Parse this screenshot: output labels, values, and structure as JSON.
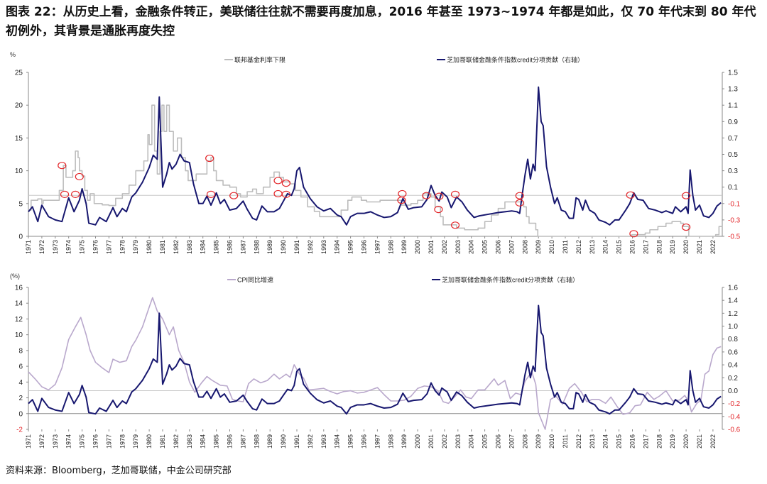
{
  "title": "图表 22：从历史上看，金融条件转正，美联储往往就不需要再度加息，2016 年甚至 1973~1974 年都是如此，仅 70 年代末到 80 年代初例外，其背景是通胀再度失控",
  "source": "资料来源：Bloomberg，芝加哥联储，中金公司研究部",
  "colors": {
    "fed": "#bdbdbd",
    "credit": "#17176f",
    "cpi": "#b9a8cc",
    "circle": "#e3262a",
    "neg_tick": "#e3262a",
    "refline": "#c8c8c8"
  },
  "chart_data": [
    {
      "type": "line",
      "unit_label": "%",
      "ylim_left": [
        0,
        25
      ],
      "yticks_left": [
        0,
        5,
        10,
        15,
        20,
        25
      ],
      "ylim_right": [
        -0.5,
        1.5
      ],
      "yticks_right": [
        "1.5",
        "1.3",
        "1.1",
        "0.9",
        "0.7",
        "0.5",
        "0.3",
        "0.1",
        "-0.1",
        "-0.3",
        "-0.5"
      ],
      "xlim": [
        1971,
        2022.7
      ],
      "xticks": [
        "1971",
        "1972",
        "1973",
        "1974",
        "1975",
        "1976",
        "1977",
        "1978",
        "1979",
        "1980",
        "1981",
        "1982",
        "1983",
        "1984",
        "1985",
        "1986",
        "1987",
        "1988",
        "1989",
        "1990",
        "1991",
        "1992",
        "1993",
        "1994",
        "1995",
        "1996",
        "1997",
        "1998",
        "1999",
        "2000",
        "2001",
        "2002",
        "2003",
        "2004",
        "2005",
        "2006",
        "2007",
        "2008",
        "2009",
        "2010",
        "2011",
        "2012",
        "2013",
        "2014",
        "2015",
        "2016",
        "2017",
        "2018",
        "2019",
        "2020",
        "2021",
        "2022"
      ],
      "reference_line_right": 0.0,
      "legend": [
        {
          "name": "联邦基金利率下限"
        },
        {
          "name": "芝加哥联储金融条件指数credit分项贡献（右轴）"
        }
      ],
      "series": [
        {
          "name": "联邦基金利率下限",
          "axis": "left",
          "step": true,
          "x": [
            1971.0,
            1971.2,
            1971.7,
            1972.0,
            1972.1,
            1973.0,
            1973.3,
            1973.6,
            1973.8,
            1974.3,
            1974.5,
            1974.7,
            1974.8,
            1975.0,
            1975.2,
            1975.4,
            1975.6,
            1975.9,
            1976.5,
            1977.0,
            1977.5,
            1978.0,
            1978.5,
            1979.0,
            1979.6,
            1979.9,
            1980.0,
            1980.2,
            1980.4,
            1980.6,
            1980.8,
            1980.95,
            1981.1,
            1981.3,
            1981.5,
            1981.8,
            1982.1,
            1982.4,
            1982.7,
            1982.9,
            1983.5,
            1984.3,
            1984.6,
            1984.8,
            1985.0,
            1985.5,
            1986.0,
            1986.5,
            1986.8,
            1987.3,
            1987.7,
            1988.0,
            1988.5,
            1989.0,
            1989.3,
            1989.7,
            1990.0,
            1990.5,
            1990.9,
            1991.3,
            1991.8,
            1992.3,
            1992.7,
            1994.1,
            1994.3,
            1994.8,
            1995.1,
            1995.8,
            1996.2,
            1997.2,
            1998.8,
            1999.5,
            2000.0,
            2000.4,
            2001.0,
            2001.3,
            2001.7,
            2001.9,
            2002.9,
            2003.5,
            2004.5,
            2005.0,
            2005.5,
            2006.0,
            2006.5,
            2007.6,
            2007.9,
            2008.1,
            2008.3,
            2008.8,
            2008.95,
            2015.95,
            2016.95,
            2017.3,
            2017.9,
            2018.5,
            2018.95,
            2019.6,
            2019.8,
            2020.2,
            2022.2,
            2022.45,
            2022.7
          ],
          "values": [
            4.0,
            5.5,
            5.7,
            5.0,
            5.5,
            5.5,
            7.0,
            10.8,
            9.0,
            10.0,
            13.0,
            12.0,
            10.0,
            9.2,
            7.0,
            5.5,
            6.5,
            5.0,
            4.8,
            4.7,
            5.8,
            6.5,
            7.8,
            10.0,
            11.5,
            15.5,
            14.0,
            20.0,
            13.0,
            9.5,
            16.0,
            20.0,
            16.0,
            20.0,
            16.0,
            13.0,
            15.0,
            12.0,
            10.0,
            8.5,
            9.5,
            11.5,
            12.0,
            10.0,
            8.5,
            7.8,
            7.5,
            6.5,
            6.0,
            6.8,
            7.2,
            6.5,
            7.5,
            9.0,
            9.8,
            9.0,
            8.3,
            8.0,
            7.0,
            6.0,
            4.5,
            3.8,
            3.0,
            3.0,
            4.0,
            5.5,
            6.0,
            5.5,
            5.25,
            5.5,
            4.75,
            5.0,
            5.5,
            6.5,
            6.0,
            4.5,
            3.0,
            1.75,
            1.25,
            1.0,
            1.25,
            2.25,
            3.25,
            4.25,
            5.25,
            5.25,
            4.5,
            3.0,
            2.0,
            1.0,
            0.0,
            0.25,
            0.5,
            1.0,
            1.5,
            2.0,
            2.25,
            2.0,
            1.5,
            0.0,
            0.25,
            1.5,
            1.5
          ]
        },
        {
          "name": "芝加哥联储金融条件指数credit分项贡献（右轴）",
          "axis": "right",
          "ref": "credit"
        }
      ],
      "annotations_circles": [
        [
          1973.5,
          10.8
        ],
        [
          1973.7,
          6.4
        ],
        [
          1974.5,
          6.4
        ],
        [
          1974.8,
          9.1
        ],
        [
          1984.5,
          11.9
        ],
        [
          1984.6,
          6.4
        ],
        [
          1986.3,
          6.2
        ],
        [
          1989.6,
          8.5
        ],
        [
          1989.6,
          6.5
        ],
        [
          1990.2,
          8.1
        ],
        [
          1990.2,
          6.4
        ],
        [
          1998.85,
          6.5
        ],
        [
          1998.8,
          5.5
        ],
        [
          2000.65,
          6.2
        ],
        [
          2001.55,
          4.1
        ],
        [
          2001.6,
          6.1
        ],
        [
          2002.8,
          6.4
        ],
        [
          2002.8,
          1.7
        ],
        [
          2007.6,
          6.2
        ],
        [
          2007.6,
          5.1
        ],
        [
          2015.85,
          6.3
        ],
        [
          2016.1,
          0.4
        ],
        [
          2020.0,
          6.2
        ],
        [
          2020.0,
          1.4
        ]
      ]
    },
    {
      "type": "line",
      "unit_label": "(%)",
      "ylim_left": [
        -2,
        16
      ],
      "yticks_left": [
        "16",
        "14",
        "12",
        "10",
        "8",
        "6",
        "4",
        "2",
        "0",
        "-2"
      ],
      "ylim_right": [
        -0.6,
        1.6
      ],
      "yticks_right": [
        "1.6",
        "1.4",
        "1.2",
        "1.0",
        "0.8",
        "0.6",
        "0.4",
        "0.2",
        "0.0",
        "-0.2",
        "-0.4",
        "-0.6"
      ],
      "xlim": [
        1971,
        2022.7
      ],
      "reference_line_right": 0.0,
      "legend": [
        {
          "name": "CPI同比增速"
        },
        {
          "name": "芝加哥联储金融条件指数credit分项贡献（右轴）"
        }
      ],
      "series": [
        {
          "name": "CPI同比增速",
          "axis": "left",
          "x": [
            1971.0,
            1971.5,
            1972.0,
            1972.5,
            1973.0,
            1973.5,
            1974.0,
            1974.5,
            1974.9,
            1975.3,
            1975.6,
            1976.0,
            1976.5,
            1977.0,
            1977.3,
            1977.8,
            1978.3,
            1978.7,
            1979.0,
            1979.5,
            1980.0,
            1980.25,
            1980.6,
            1981.0,
            1981.5,
            1981.8,
            1982.2,
            1982.6,
            1983.0,
            1983.4,
            1983.9,
            1984.3,
            1984.7,
            1985.3,
            1985.8,
            1986.2,
            1986.6,
            1987.0,
            1987.4,
            1987.8,
            1988.3,
            1988.8,
            1989.3,
            1989.7,
            1990.2,
            1990.5,
            1990.8,
            1991.2,
            1991.5,
            1991.9,
            1992.5,
            1993.0,
            1993.5,
            1994.0,
            1994.5,
            1995.0,
            1995.5,
            1996.0,
            1996.5,
            1997.0,
            1997.5,
            1998.0,
            1998.5,
            1999.0,
            1999.5,
            2000.0,
            2000.5,
            2001.0,
            2001.5,
            2001.9,
            2002.3,
            2002.8,
            2003.2,
            2003.6,
            2004.0,
            2004.5,
            2005.0,
            2005.7,
            2006.0,
            2006.5,
            2006.9,
            2007.3,
            2007.7,
            2008.0,
            2008.5,
            2008.8,
            2009.0,
            2009.5,
            2009.9,
            2010.3,
            2010.8,
            2011.3,
            2011.7,
            2012.2,
            2012.6,
            2013.0,
            2013.5,
            2014.0,
            2014.4,
            2014.9,
            2015.3,
            2015.8,
            2016.2,
            2016.6,
            2017.1,
            2017.6,
            2018.0,
            2018.5,
            2019.0,
            2019.5,
            2019.9,
            2020.2,
            2020.4,
            2020.8,
            2021.1,
            2021.4,
            2021.7,
            2022.0,
            2022.3,
            2022.6
          ],
          "values": [
            5.3,
            4.4,
            3.4,
            3.0,
            3.7,
            5.8,
            9.4,
            11.0,
            12.2,
            10.0,
            8.0,
            6.5,
            5.8,
            5.2,
            6.9,
            6.5,
            6.7,
            8.5,
            9.3,
            11.0,
            13.5,
            14.7,
            13.0,
            12.0,
            10.0,
            11.0,
            8.0,
            6.5,
            4.0,
            2.7,
            3.9,
            4.7,
            4.2,
            3.6,
            3.5,
            1.8,
            1.6,
            1.5,
            3.8,
            4.4,
            3.9,
            4.2,
            5.0,
            4.4,
            5.0,
            4.6,
            6.2,
            5.0,
            4.5,
            3.0,
            3.1,
            3.2,
            2.8,
            2.5,
            2.8,
            2.9,
            2.6,
            2.7,
            3.0,
            3.3,
            2.4,
            1.6,
            1.6,
            1.7,
            2.2,
            3.2,
            3.5,
            3.4,
            2.9,
            1.5,
            1.3,
            2.2,
            3.0,
            2.1,
            1.9,
            3.0,
            3.0,
            4.4,
            3.6,
            4.2,
            1.9,
            2.6,
            2.4,
            4.1,
            5.3,
            3.7,
            0.1,
            -2.0,
            1.8,
            2.2,
            1.2,
            3.2,
            3.8,
            2.7,
            1.5,
            1.8,
            1.8,
            1.3,
            2.1,
            0.8,
            -0.1,
            0.1,
            1.0,
            1.1,
            2.7,
            1.8,
            2.2,
            2.9,
            1.6,
            1.7,
            2.3,
            1.5,
            0.2,
            1.3,
            1.7,
            5.0,
            5.4,
            7.5,
            8.3,
            8.5
          ]
        },
        {
          "name": "芝加哥联储金融条件指数credit分项贡献（右轴）",
          "axis": "right",
          "ref": "credit"
        }
      ]
    }
  ],
  "credit": {
    "x": [
      1971.0,
      1971.3,
      1971.7,
      1972.0,
      1972.5,
      1973.0,
      1973.5,
      1974.0,
      1974.4,
      1974.8,
      1975.0,
      1975.3,
      1975.5,
      1976.0,
      1976.3,
      1976.8,
      1977.3,
      1977.6,
      1978.0,
      1978.3,
      1978.7,
      1979.0,
      1979.5,
      1980.0,
      1980.3,
      1980.6,
      1980.75,
      1981.0,
      1981.3,
      1981.5,
      1981.7,
      1982.0,
      1982.3,
      1982.6,
      1983.0,
      1983.3,
      1983.7,
      1984.0,
      1984.3,
      1984.6,
      1985.0,
      1985.3,
      1985.6,
      1986.0,
      1986.5,
      1987.0,
      1987.3,
      1987.7,
      1988.0,
      1988.4,
      1988.8,
      1989.3,
      1989.7,
      1990.3,
      1990.6,
      1990.8,
      1991.0,
      1991.2,
      1991.5,
      1992.0,
      1992.5,
      1993.0,
      1993.5,
      1994.0,
      1994.3,
      1994.7,
      1995.0,
      1995.5,
      1996.0,
      1996.5,
      1997.0,
      1997.5,
      1998.0,
      1998.5,
      1998.9,
      1999.3,
      1999.7,
      2000.3,
      2000.7,
      2001.0,
      2001.3,
      2001.6,
      2001.8,
      2002.2,
      2002.5,
      2002.9,
      2003.3,
      2003.7,
      2004.2,
      2004.6,
      2005.3,
      2006.0,
      2006.5,
      2007.0,
      2007.4,
      2007.6,
      2007.8,
      2008.0,
      2008.2,
      2008.4,
      2008.6,
      2008.75,
      2009.0,
      2009.2,
      2009.35,
      2009.6,
      2009.9,
      2010.2,
      2010.4,
      2010.7,
      2011.0,
      2011.3,
      2011.6,
      2011.8,
      2012.0,
      2012.3,
      2012.5,
      2012.8,
      2013.2,
      2013.5,
      2014.0,
      2014.3,
      2014.7,
      2015.0,
      2015.5,
      2015.8,
      2016.1,
      2016.4,
      2016.8,
      2017.2,
      2017.7,
      2018.2,
      2018.5,
      2019.0,
      2019.2,
      2019.6,
      2020.0,
      2020.15,
      2020.3,
      2020.5,
      2020.7,
      2021.0,
      2021.3,
      2021.7,
      2022.0,
      2022.3,
      2022.6
    ],
    "values": [
      -0.2,
      -0.14,
      -0.32,
      -0.12,
      -0.26,
      -0.3,
      -0.32,
      -0.03,
      -0.2,
      -0.06,
      0.08,
      -0.1,
      -0.34,
      -0.36,
      -0.27,
      -0.32,
      -0.15,
      -0.26,
      -0.16,
      -0.2,
      -0.02,
      0.03,
      0.16,
      0.34,
      0.49,
      0.44,
      1.2,
      0.1,
      0.26,
      0.4,
      0.32,
      0.38,
      0.5,
      0.42,
      0.4,
      0.14,
      -0.1,
      -0.1,
      -0.01,
      -0.12,
      0.03,
      -0.1,
      -0.05,
      -0.18,
      -0.16,
      -0.07,
      -0.17,
      -0.28,
      -0.3,
      -0.13,
      -0.2,
      -0.2,
      -0.16,
      0.02,
      0.0,
      0.08,
      0.3,
      0.34,
      0.1,
      -0.04,
      -0.14,
      -0.19,
      -0.16,
      -0.24,
      -0.26,
      -0.36,
      -0.26,
      -0.22,
      -0.22,
      -0.2,
      -0.24,
      -0.27,
      -0.26,
      -0.21,
      -0.04,
      -0.17,
      -0.15,
      -0.14,
      -0.05,
      0.12,
      0.0,
      -0.07,
      0.04,
      -0.02,
      -0.15,
      -0.02,
      -0.08,
      -0.18,
      -0.27,
      -0.25,
      -0.23,
      -0.21,
      -0.2,
      -0.19,
      -0.2,
      -0.22,
      0.02,
      0.25,
      0.44,
      0.2,
      0.38,
      0.3,
      1.32,
      0.9,
      0.85,
      0.35,
      0.1,
      -0.1,
      -0.03,
      -0.18,
      -0.2,
      -0.28,
      -0.28,
      -0.03,
      -0.05,
      -0.18,
      -0.06,
      -0.18,
      -0.22,
      -0.3,
      -0.33,
      -0.36,
      -0.3,
      -0.3,
      -0.18,
      -0.1,
      0.03,
      -0.05,
      -0.06,
      -0.16,
      -0.18,
      -0.21,
      -0.19,
      -0.22,
      -0.14,
      -0.2,
      -0.14,
      -0.22,
      0.31,
      0.0,
      -0.18,
      -0.12,
      -0.25,
      -0.27,
      -0.22,
      -0.13,
      -0.09
    ]
  }
}
